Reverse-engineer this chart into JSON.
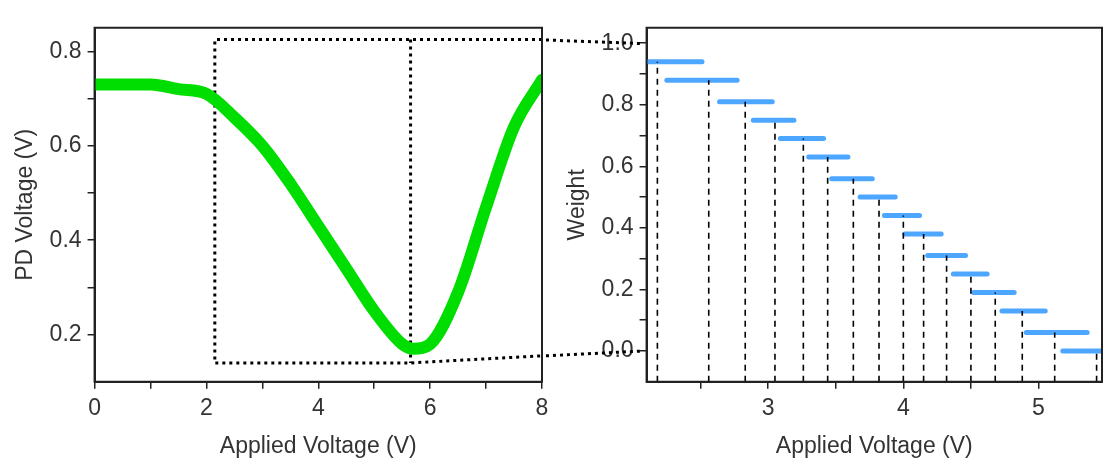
{
  "chart_data": [
    {
      "type": "line",
      "xlabel": "Applied Voltage (V)",
      "ylabel": "PD Voltage (V)",
      "x": [
        0,
        0.5,
        1,
        1.5,
        2,
        2.5,
        3,
        3.5,
        4,
        4.5,
        5,
        5.5,
        5.7,
        6,
        6.5,
        7,
        7.5,
        8
      ],
      "series": [
        {
          "color": "#00dd00",
          "values": [
            0.73,
            0.73,
            0.73,
            0.72,
            0.71,
            0.66,
            0.6,
            0.52,
            0.43,
            0.34,
            0.25,
            0.18,
            0.17,
            0.18,
            0.29,
            0.47,
            0.64,
            0.74
          ]
        },
        {
          "color": "#000000",
          "line_style": "dotted",
          "x": [
            8,
            2.15,
            2.15,
            5.65,
            8
          ],
          "values": [
            0.825,
            0.825,
            0.14,
            0.14,
            0.155
          ]
        },
        {
          "color": "#000000",
          "line_style": "dotted",
          "x": [
            5.65,
            5.65
          ],
          "values": [
            0.825,
            0.14
          ]
        }
      ],
      "xlim": [
        0,
        8
      ],
      "ylim": [
        0.1,
        0.85
      ],
      "xticks": [
        0,
        {
          "value": 1,
          "label": null
        },
        2,
        {
          "value": 3,
          "label": null
        },
        4,
        {
          "value": 5,
          "label": null
        },
        6,
        {
          "value": 7,
          "label": null
        },
        8
      ],
      "yticks": [
        0.2,
        {
          "value": 0.3,
          "label": null
        },
        0.4,
        {
          "value": 0.5,
          "label": null
        },
        0.6,
        {
          "value": 0.7,
          "label": null
        },
        0.8
      ],
      "grid": false
    },
    {
      "type": "line",
      "xlabel": "Applied Voltage (V)",
      "ylabel": "Weight",
      "series": [
        {
          "color": "#4da6ff",
          "x": [
            2.1,
            2.51
          ],
          "values": [
            0.94,
            0.94
          ]
        },
        {
          "color": "#4da6ff",
          "x": [
            2.25,
            2.77
          ],
          "values": [
            0.88,
            0.88
          ]
        },
        {
          "color": "#4da6ff",
          "x": [
            2.64,
            3.03
          ],
          "values": [
            0.81,
            0.81
          ]
        },
        {
          "color": "#4da6ff",
          "x": [
            2.89,
            3.19
          ],
          "values": [
            0.75,
            0.75
          ]
        },
        {
          "color": "#4da6ff",
          "x": [
            3.09,
            3.41
          ],
          "values": [
            0.69,
            0.69
          ]
        },
        {
          "color": "#4da6ff",
          "x": [
            3.3,
            3.59
          ],
          "values": [
            0.63,
            0.63
          ]
        },
        {
          "color": "#4da6ff",
          "x": [
            3.47,
            3.77
          ],
          "values": [
            0.56,
            0.56
          ]
        },
        {
          "color": "#4da6ff",
          "x": [
            3.68,
            3.94
          ],
          "values": [
            0.5,
            0.5
          ]
        },
        {
          "color": "#4da6ff",
          "x": [
            3.86,
            4.12
          ],
          "values": [
            0.44,
            0.44
          ]
        },
        {
          "color": "#4da6ff",
          "x": [
            4.01,
            4.28
          ],
          "values": [
            0.38,
            0.38
          ]
        },
        {
          "color": "#4da6ff",
          "x": [
            4.18,
            4.46
          ],
          "values": [
            0.31,
            0.31
          ]
        },
        {
          "color": "#4da6ff",
          "x": [
            4.37,
            4.62
          ],
          "values": [
            0.25,
            0.25
          ]
        },
        {
          "color": "#4da6ff",
          "x": [
            4.52,
            4.82
          ],
          "values": [
            0.19,
            0.19
          ]
        },
        {
          "color": "#4da6ff",
          "x": [
            4.73,
            5.05
          ],
          "values": [
            0.13,
            0.13
          ]
        },
        {
          "color": "#4da6ff",
          "x": [
            4.91,
            5.36
          ],
          "values": [
            0.06,
            0.06
          ]
        },
        {
          "color": "#4da6ff",
          "x": [
            5.18,
            5.47
          ],
          "values": [
            0,
            0
          ]
        }
      ],
      "xlim": [
        2.1,
        5.47
      ],
      "ylim": [
        -0.1,
        1.05
      ],
      "xticks": [
        {
          "value": 2.5,
          "label": null
        },
        3,
        {
          "value": 3.5,
          "label": null
        },
        4,
        {
          "value": 4.5,
          "label": null
        },
        5
      ],
      "yticks": [
        {
          "value": 0,
          "label": "0.0"
        },
        {
          "value": 0.1,
          "label": null
        },
        0.2,
        {
          "value": 0.3,
          "label": null
        },
        0.4,
        {
          "value": 0.5,
          "label": null
        },
        0.6,
        {
          "value": 0.7,
          "label": null
        },
        0.8,
        {
          "value": 0.9,
          "label": null
        },
        {
          "value": 1,
          "label": "1.0"
        }
      ],
      "ref_lines": [
        {
          "axis": "x",
          "value": 2.18,
          "color": "#000000",
          "line_style": "dashed"
        },
        {
          "axis": "x",
          "value": 2.56,
          "color": "#000000",
          "line_style": "dashed"
        },
        {
          "axis": "x",
          "value": 2.83,
          "color": "#000000",
          "line_style": "dashed"
        },
        {
          "axis": "x",
          "value": 3.05,
          "color": "#000000",
          "line_style": "dashed"
        },
        {
          "axis": "x",
          "value": 3.26,
          "color": "#000000",
          "line_style": "dashed"
        },
        {
          "axis": "x",
          "value": 3.44,
          "color": "#000000",
          "line_style": "dashed"
        },
        {
          "axis": "x",
          "value": 3.63,
          "color": "#000000",
          "line_style": "dashed"
        },
        {
          "axis": "x",
          "value": 3.82,
          "color": "#000000",
          "line_style": "dashed"
        },
        {
          "axis": "x",
          "value": 4,
          "color": "#000000",
          "line_style": "dashed"
        },
        {
          "axis": "x",
          "value": 4.15,
          "color": "#000000",
          "line_style": "dashed"
        },
        {
          "axis": "x",
          "value": 4.32,
          "color": "#000000",
          "line_style": "dashed"
        },
        {
          "axis": "x",
          "value": 4.5,
          "color": "#000000",
          "line_style": "dashed"
        },
        {
          "axis": "x",
          "value": 4.68,
          "color": "#000000",
          "line_style": "dashed"
        },
        {
          "axis": "x",
          "value": 4.88,
          "color": "#000000",
          "line_style": "dashed"
        },
        {
          "axis": "x",
          "value": 5.12,
          "color": "#000000",
          "line_style": "dashed"
        },
        {
          "axis": "x",
          "value": 5.43,
          "color": "#000000",
          "line_style": "dashed"
        }
      ],
      "grid": false
    }
  ]
}
